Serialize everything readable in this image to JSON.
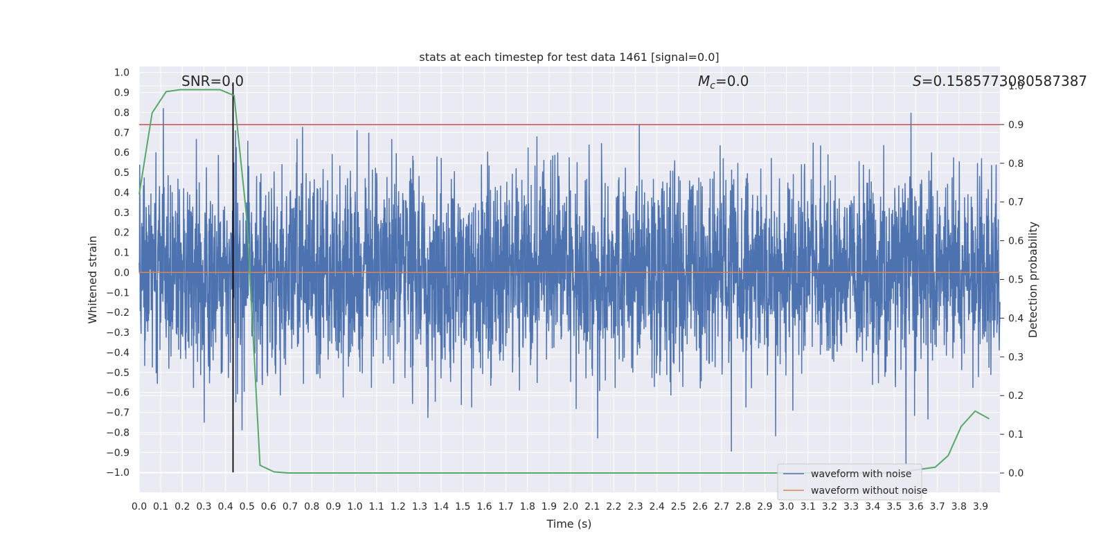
{
  "chart_data": {
    "type": "line",
    "title": "stats at each timestep for test data 1461 [signal=0.0]",
    "xlabel": "Time (s)",
    "ylabel": "Whitened strain",
    "y2label": "Detection probability",
    "xlim": [
      0.0,
      3.99
    ],
    "ylim": [
      -1.1,
      1.03
    ],
    "y2lim": [
      -0.05,
      1.05
    ],
    "xticks": [
      "0.0",
      "0.1",
      "0.2",
      "0.3",
      "0.4",
      "0.5",
      "0.6",
      "0.7",
      "0.8",
      "0.9",
      "1.0",
      "1.1",
      "1.2",
      "1.3",
      "1.4",
      "1.5",
      "1.6",
      "1.7",
      "1.8",
      "1.9",
      "2.0",
      "2.1",
      "2.2",
      "2.3",
      "2.4",
      "2.5",
      "2.6",
      "2.7",
      "2.8",
      "2.9",
      "3.0",
      "3.1",
      "3.2",
      "3.3",
      "3.4",
      "3.5",
      "3.6",
      "3.7",
      "3.8",
      "3.9"
    ],
    "yticks": [
      "1.0",
      "0.9",
      "0.8",
      "0.7",
      "0.6",
      "0.5",
      "0.4",
      "0.3",
      "0.2",
      "0.1",
      "0.0",
      "−0.1",
      "−0.2",
      "−0.3",
      "−0.4",
      "−0.5",
      "−0.6",
      "−0.7",
      "−0.8",
      "−0.9",
      "−1.0"
    ],
    "y2ticks": [
      "1.0",
      "0.9",
      "0.8",
      "0.7",
      "0.6",
      "0.5",
      "0.4",
      "0.3",
      "0.2",
      "0.1",
      "0.0"
    ],
    "annotations": {
      "snr": "SNR=0.0",
      "mc_symbol": "M",
      "mc_sub": "c",
      "mc_value": "=0.0",
      "s_symbol": "S",
      "s_value": "=0.1585773080587387"
    },
    "threshold": 0.9,
    "marker_time": 0.435,
    "series": [
      {
        "name": "waveform with noise",
        "color": "#4c72b0",
        "note": "dense noise, std approx 0.25, clipped to ±1.0"
      },
      {
        "name": "waveform without noise",
        "color": "#dd8452",
        "values_constant": 0.0
      },
      {
        "name": "detection probability",
        "color": "#55a868",
        "x": [
          0.0,
          0.06,
          0.125,
          0.19,
          0.25,
          0.31,
          0.375,
          0.44,
          0.5,
          0.56,
          0.625,
          0.69,
          0.75,
          1.0,
          2.0,
          3.0,
          3.5,
          3.69,
          3.75,
          3.81,
          3.875,
          3.94
        ],
        "values": [
          0.72,
          0.93,
          0.985,
          0.99,
          0.99,
          0.99,
          0.99,
          0.975,
          0.65,
          0.02,
          0.003,
          0.0,
          0.0,
          0.0,
          0.0,
          0.0,
          0.0,
          0.015,
          0.045,
          0.12,
          0.16,
          0.14
        ]
      }
    ],
    "legend": [
      "waveform with noise",
      "waveform without noise"
    ],
    "legend_position": "lower right",
    "colors": {
      "background": "#eaeaf2",
      "grid": "#ffffff",
      "threshold": "#c44e52",
      "marker": "#000000"
    }
  }
}
